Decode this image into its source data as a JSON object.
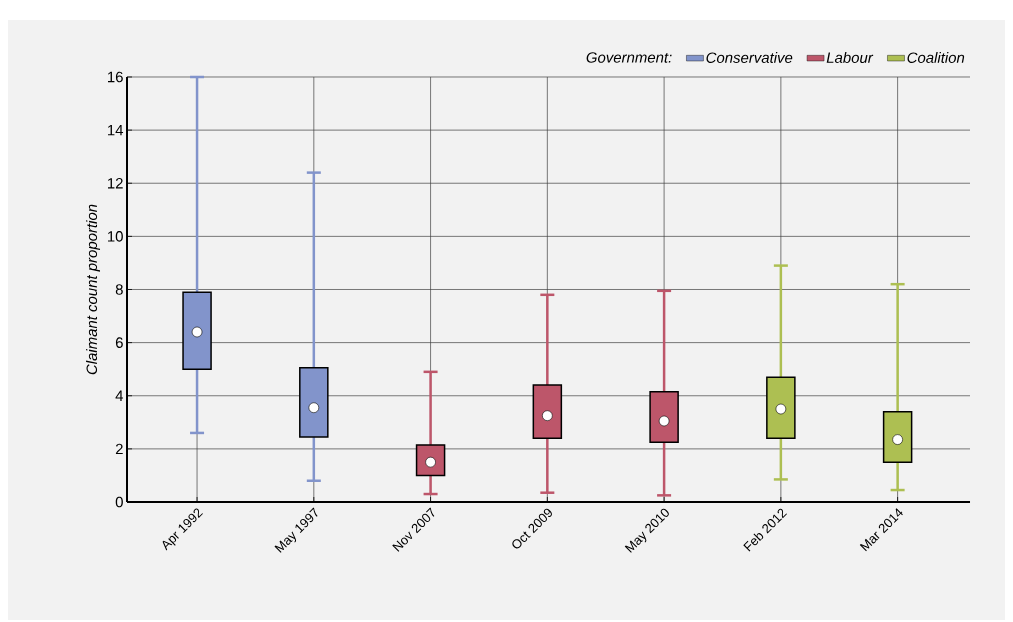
{
  "chart_data": {
    "type": "box",
    "ylabel": "*Claimant count proportion*",
    "legend_title": "*Government:*",
    "categories": [
      "Apr 1992",
      "May 1997",
      "Nov 2007",
      "Oct 2009",
      "May 2010",
      "Feb 2012",
      "Mar 2014"
    ],
    "series": [
      {
        "name": "*Conservative*",
        "color": "#8294cb",
        "boxes": [
          {
            "low": 2.6,
            "q1": 5.0,
            "median": 6.4,
            "q3": 7.9,
            "high": 16
          },
          {
            "low": 0.8,
            "q1": 2.45,
            "median": 3.55,
            "q3": 5.05,
            "high": 12.4
          },
          null,
          null,
          null,
          null,
          null
        ]
      },
      {
        "name": "*Labour*",
        "color": "#bd566a",
        "boxes": [
          null,
          null,
          {
            "low": 0.3,
            "q1": 1.0,
            "median": 1.5,
            "q3": 2.15,
            "high": 4.9
          },
          {
            "low": 0.35,
            "q1": 2.4,
            "median": 3.25,
            "q3": 4.4,
            "high": 7.8
          },
          {
            "low": 0.25,
            "q1": 2.25,
            "median": 3.05,
            "q3": 4.15,
            "high": 7.95
          },
          null,
          null
        ]
      },
      {
        "name": "*Coalition*",
        "color": "#adbf52",
        "boxes": [
          null,
          null,
          null,
          null,
          null,
          {
            "low": 0.85,
            "q1": 2.4,
            "median": 3.5,
            "q3": 4.7,
            "high": 8.9
          },
          {
            "low": 0.45,
            "q1": 1.5,
            "median": 2.35,
            "q3": 3.4,
            "high": 8.2
          }
        ]
      }
    ],
    "ylim": [
      0,
      16
    ],
    "yticks": [
      0,
      2,
      4,
      6,
      8,
      10,
      12,
      14,
      16
    ],
    "grid": true,
    "legend": "top right"
  }
}
